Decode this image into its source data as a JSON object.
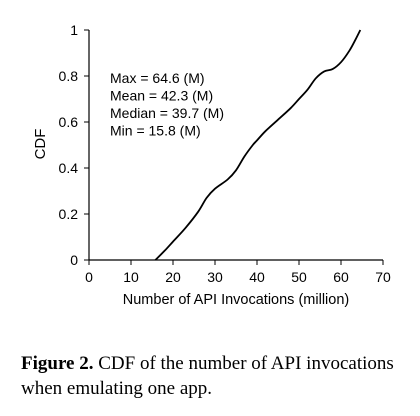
{
  "chart_data": {
    "type": "line",
    "title": "",
    "xlabel": "Number of API Invocations (million)",
    "ylabel": "CDF",
    "xlim": [
      0,
      70
    ],
    "ylim": [
      0,
      1
    ],
    "x_ticks": [
      "0",
      "10",
      "20",
      "30",
      "40",
      "50",
      "60",
      "70"
    ],
    "y_ticks": [
      "0",
      "0.2",
      "0.4",
      "0.6",
      "0.8",
      "1"
    ],
    "grid": false,
    "legend": "none",
    "annotations": [
      "Max = 64.6 (M)",
      "Mean = 42.3 (M)",
      "Median = 39.7 (M)",
      "Min = 15.8 (M)"
    ],
    "series": [
      {
        "color": "#000000",
        "x": [
          15.8,
          18,
          20,
          23,
          26,
          28,
          30,
          33,
          35,
          37,
          39,
          40,
          42,
          45,
          48,
          50,
          52,
          54,
          56,
          58,
          60,
          62,
          63.5,
          64.6
        ],
        "y": [
          0.0,
          0.04,
          0.08,
          0.14,
          0.21,
          0.27,
          0.31,
          0.35,
          0.39,
          0.45,
          0.5,
          0.52,
          0.56,
          0.61,
          0.66,
          0.7,
          0.74,
          0.79,
          0.82,
          0.83,
          0.86,
          0.91,
          0.96,
          1.0
        ]
      }
    ]
  },
  "caption": {
    "label": "Figure 2.",
    "text": " CDF of the number of API invocations when emulating one app."
  }
}
